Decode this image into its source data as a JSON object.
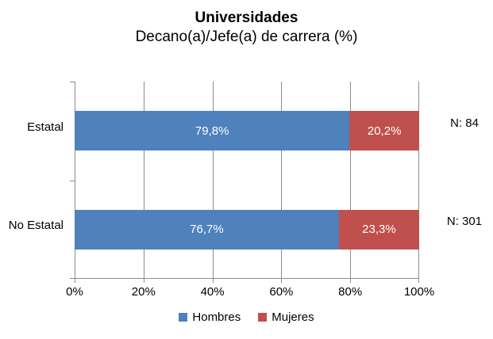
{
  "title": "Universidades",
  "subtitle": "Decano(a)/Jefe(a) de carrera (%)",
  "chart_data": {
    "type": "bar",
    "orientation": "horizontal",
    "stacked": true,
    "title": "Universidades",
    "subtitle": "Decano(a)/Jefe(a) de carrera (%)",
    "categories": [
      "Estatal",
      "No Estatal"
    ],
    "series": [
      {
        "name": "Hombres",
        "color": "#4F81BD",
        "values": [
          79.8,
          76.7
        ],
        "labels": [
          "79,8%",
          "76,7%"
        ]
      },
      {
        "name": "Mujeres",
        "color": "#C0504D",
        "values": [
          20.2,
          23.3
        ],
        "labels": [
          "20,2%",
          "23,3%"
        ]
      }
    ],
    "n_labels": [
      "N: 84",
      "N: 301"
    ],
    "x_ticks": [
      "0%",
      "20%",
      "40%",
      "60%",
      "80%",
      "100%"
    ],
    "xlim": [
      0,
      100
    ],
    "grid": "vertical-major",
    "gridline_color": "#8C8C8C",
    "bar_label_color": "#FFFFFF",
    "legend_position": "bottom"
  }
}
